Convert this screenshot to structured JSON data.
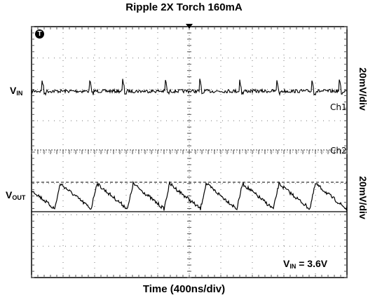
{
  "chart_data": {
    "type": "line",
    "title": "Ripple 2X Torch 160mA",
    "xlabel": "Time (400ns/div)",
    "channels": [
      {
        "name": "Ch1",
        "signal_main": "V",
        "signal_sub": "IN",
        "scale": "20mV/div",
        "approx_ripple_mV_pp": 8
      },
      {
        "name": "Ch2",
        "signal_main": "V",
        "signal_sub": "OUT",
        "scale": "20mV/div",
        "approx_ripple_mV_pp": 20
      }
    ],
    "grid": true,
    "trigger_marker": "T",
    "annotation": {
      "main": "V",
      "sub": "IN",
      "value": "= 3.6V"
    }
  }
}
